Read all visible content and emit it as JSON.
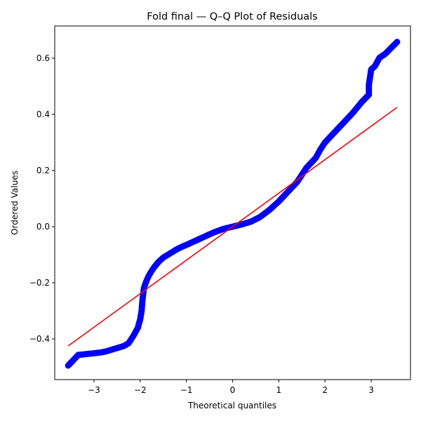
{
  "chart_data": {
    "type": "scatter",
    "title": "Fold final — Q–Q Plot of Residuals",
    "xlabel": "Theoretical quantiles",
    "ylabel": "Ordered Values",
    "xlim": [
      -3.85,
      3.85
    ],
    "ylim": [
      -0.545,
      0.715
    ],
    "x_ticks": [
      -3,
      -2,
      -1,
      0,
      1,
      2,
      3
    ],
    "x_tick_labels": [
      "−3",
      "−2",
      "−1",
      "0",
      "1",
      "2",
      "3"
    ],
    "y_ticks": [
      -0.4,
      -0.2,
      0.0,
      0.2,
      0.4,
      0.6
    ],
    "y_tick_labels": [
      "−0.4",
      "−0.2",
      "0.0",
      "0.2",
      "0.4",
      "0.6"
    ],
    "grid": false,
    "point_color": "#0000ff",
    "line_color": "#ff0000",
    "fit_line": {
      "x": [
        -3.56,
        3.56
      ],
      "y": [
        -0.425,
        0.425
      ]
    },
    "points": {
      "x": [
        -3.56,
        -3.34,
        -3.22,
        -3.12,
        -3.04,
        -2.95,
        -2.85,
        -2.75,
        -2.65,
        -2.55,
        -2.45,
        -2.35,
        -2.25,
        -2.15,
        -2.05,
        -2.0,
        -1.97,
        -1.95,
        -1.92,
        -1.88,
        -1.83,
        -1.78,
        -1.7,
        -1.6,
        -1.5,
        -1.4,
        -1.3,
        -1.2,
        -1.1,
        -1.0,
        -0.8,
        -0.6,
        -0.4,
        -0.2,
        0.0,
        0.2,
        0.4,
        0.6,
        0.8,
        1.0,
        1.2,
        1.4,
        1.6,
        1.8,
        1.9,
        2.0,
        2.2,
        2.4,
        2.6,
        2.8,
        2.95,
        2.95,
        3.0,
        3.08,
        3.18,
        3.3,
        3.56
      ],
      "y": [
        -0.495,
        -0.457,
        -0.455,
        -0.453,
        -0.452,
        -0.45,
        -0.448,
        -0.445,
        -0.44,
        -0.435,
        -0.43,
        -0.425,
        -0.415,
        -0.39,
        -0.36,
        -0.33,
        -0.3,
        -0.26,
        -0.22,
        -0.2,
        -0.18,
        -0.165,
        -0.145,
        -0.125,
        -0.11,
        -0.1,
        -0.09,
        -0.08,
        -0.072,
        -0.065,
        -0.05,
        -0.035,
        -0.02,
        -0.008,
        0.0,
        0.008,
        0.018,
        0.035,
        0.06,
        0.09,
        0.125,
        0.16,
        0.21,
        0.245,
        0.275,
        0.3,
        0.335,
        0.37,
        0.405,
        0.445,
        0.47,
        0.505,
        0.56,
        0.572,
        0.602,
        0.615,
        0.658
      ]
    }
  }
}
